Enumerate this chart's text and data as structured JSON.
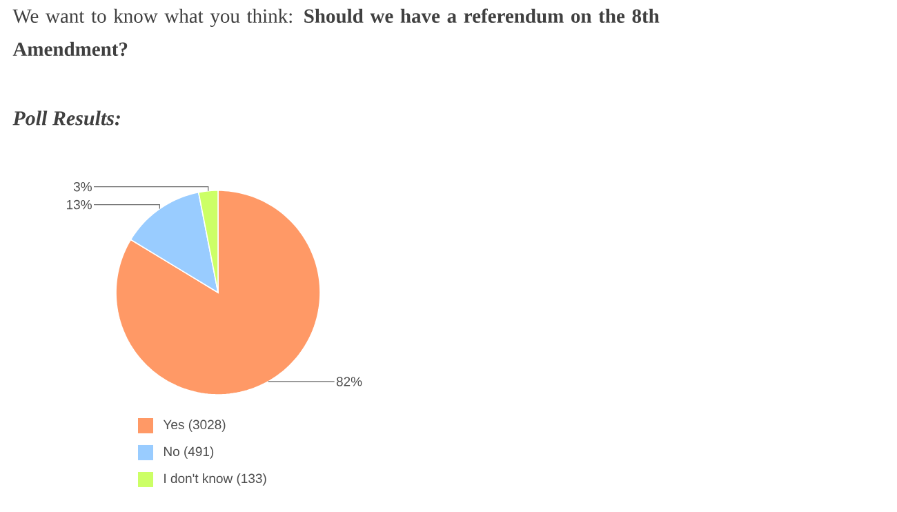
{
  "chart_data": {
    "type": "pie",
    "title": "We want to know what you think: **Should we have a referendum on the 8th Amendment?**",
    "subtitle": "Poll Results:",
    "categories": [
      "Yes (3028)",
      "No (491)",
      "I don't know (133)"
    ],
    "values": [
      82,
      13,
      3
    ],
    "colors": [
      "#ff9966",
      "#99ccff",
      "#ccff66"
    ],
    "value_labels": [
      "82%",
      "13%",
      "3%"
    ],
    "legend": "bottom"
  }
}
